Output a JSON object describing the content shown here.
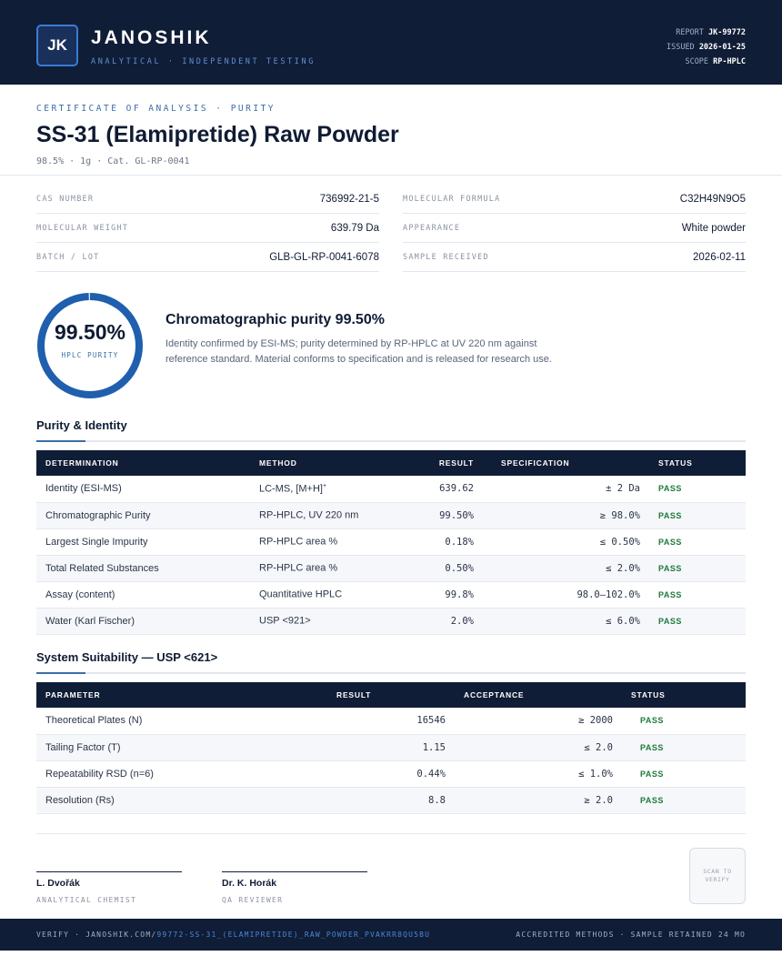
{
  "header": {
    "logo": "JK",
    "brand": "JANOSHIK",
    "tagline": "ANALYTICAL · INDEPENDENT TESTING",
    "report_label": "REPORT",
    "report_value": "JK-99772",
    "issued_label": "ISSUED",
    "issued_value": "2026-01-25",
    "scope_label": "SCOPE",
    "scope_value": "RP-HPLC"
  },
  "document": {
    "kicker": "CERTIFICATE OF ANALYSIS · PURITY",
    "title": "SS-31 (Elamipretide) Raw Powder",
    "subtitle": "98.5% · 1g  ·  Cat. GL-RP-0041"
  },
  "info": {
    "cas_label": "CAS NUMBER",
    "cas_value": "736992-21-5",
    "formula_label": "MOLECULAR FORMULA",
    "formula_value": "C32H49N9O5",
    "mw_label": "MOLECULAR WEIGHT",
    "mw_value": "639.79 Da",
    "appearance_label": "APPEARANCE",
    "appearance_value": "White powder",
    "batch_label": "BATCH / LOT",
    "batch_value": "GLB-GL-RP-0041-6078",
    "received_label": "SAMPLE RECEIVED",
    "received_value": "2026-02-11"
  },
  "purity": {
    "value": "99.50%",
    "fraction": 0.995,
    "label": "HPLC PURITY",
    "heading": "Chromatographic purity 99.50%",
    "body": "Identity confirmed by ESI-MS; purity determined by RP-HPLC at UV 220 nm against reference standard. Material conforms to specification and is released for research use.",
    "ring_color": "#1f5fae"
  },
  "purity_identity": {
    "title": "Purity & Identity",
    "headers": [
      "DETERMINATION",
      "METHOD",
      "RESULT",
      "SPECIFICATION",
      "STATUS"
    ],
    "rows": [
      {
        "determination": "Identity (ESI-MS)",
        "method": "LC-MS, [M+H]",
        "method_sup": "+",
        "result": "639.62",
        "spec": "± 2 Da",
        "status": "PASS"
      },
      {
        "determination": "Chromatographic Purity",
        "method": "RP-HPLC, UV 220 nm",
        "method_sup": "",
        "result": "99.50%",
        "spec": "≥ 98.0%",
        "status": "PASS"
      },
      {
        "determination": "Largest Single Impurity",
        "method": "RP-HPLC area %",
        "method_sup": "",
        "result": "0.18%",
        "spec": "≤ 0.50%",
        "status": "PASS"
      },
      {
        "determination": "Total Related Substances",
        "method": "RP-HPLC area %",
        "method_sup": "",
        "result": "0.50%",
        "spec": "≤ 2.0%",
        "status": "PASS"
      },
      {
        "determination": "Assay (content)",
        "method": "Quantitative HPLC",
        "method_sup": "",
        "result": "99.8%",
        "spec": "98.0–102.0%",
        "status": "PASS"
      },
      {
        "determination": "Water (Karl Fischer)",
        "method": "USP <921>",
        "method_sup": "",
        "result": "2.0%",
        "spec": "≤ 6.0%",
        "status": "PASS"
      }
    ]
  },
  "system_suitability": {
    "title": "System Suitability — USP <621>",
    "headers": [
      "PARAMETER",
      "RESULT",
      "ACCEPTANCE",
      "STATUS"
    ],
    "rows": [
      {
        "parameter": "Theoretical Plates (N)",
        "result": "16546",
        "acceptance": "≥ 2000",
        "status": "PASS"
      },
      {
        "parameter": "Tailing Factor (T)",
        "result": "1.15",
        "acceptance": "≤ 2.0",
        "status": "PASS"
      },
      {
        "parameter": "Repeatability RSD (n=6)",
        "result": "0.44%",
        "acceptance": "≤ 1.0%",
        "status": "PASS"
      },
      {
        "parameter": "Resolution (Rs)",
        "result": "8.8",
        "acceptance": "≥ 2.0",
        "status": "PASS"
      }
    ]
  },
  "signatures": {
    "chemist_name": "L. Dvořák",
    "chemist_role": "ANALYTICAL CHEMIST",
    "reviewer_name": "Dr. K. Horák",
    "reviewer_role": "QA REVIEWER",
    "qr_text": "SCAN TO VERIFY"
  },
  "footer": {
    "verify_prefix": "VERIFY · JANOSHIK.COM/",
    "verify_path": "99772-SS-31_(ELAMIPRETIDE)_RAW_POWDER_PVAKRR8QU5BU",
    "right": "ACCREDITED METHODS · SAMPLE RETAINED 24 MO"
  }
}
